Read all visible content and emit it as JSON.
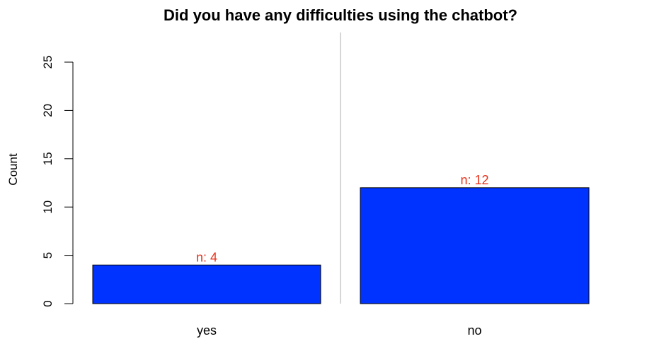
{
  "chart_data": {
    "type": "bar",
    "title": "Did you have any difficulties using the chatbot?",
    "xlabel": "",
    "ylabel": "Count",
    "categories": [
      "yes",
      "no"
    ],
    "values": [
      4,
      12
    ],
    "data_labels": [
      "n: 4",
      "n: 12"
    ],
    "ylim": [
      0,
      25
    ],
    "yticks": [
      0,
      5,
      10,
      15,
      20,
      25
    ],
    "ytick_labels": [
      "0",
      "5",
      "10",
      "15",
      "20",
      "25"
    ],
    "grid": false,
    "legend": "none",
    "colors": {
      "bar_fill": "#0033FF",
      "bar_stroke": "#000000",
      "data_label": "#E8331C",
      "separator": "#C8C8C8"
    }
  }
}
